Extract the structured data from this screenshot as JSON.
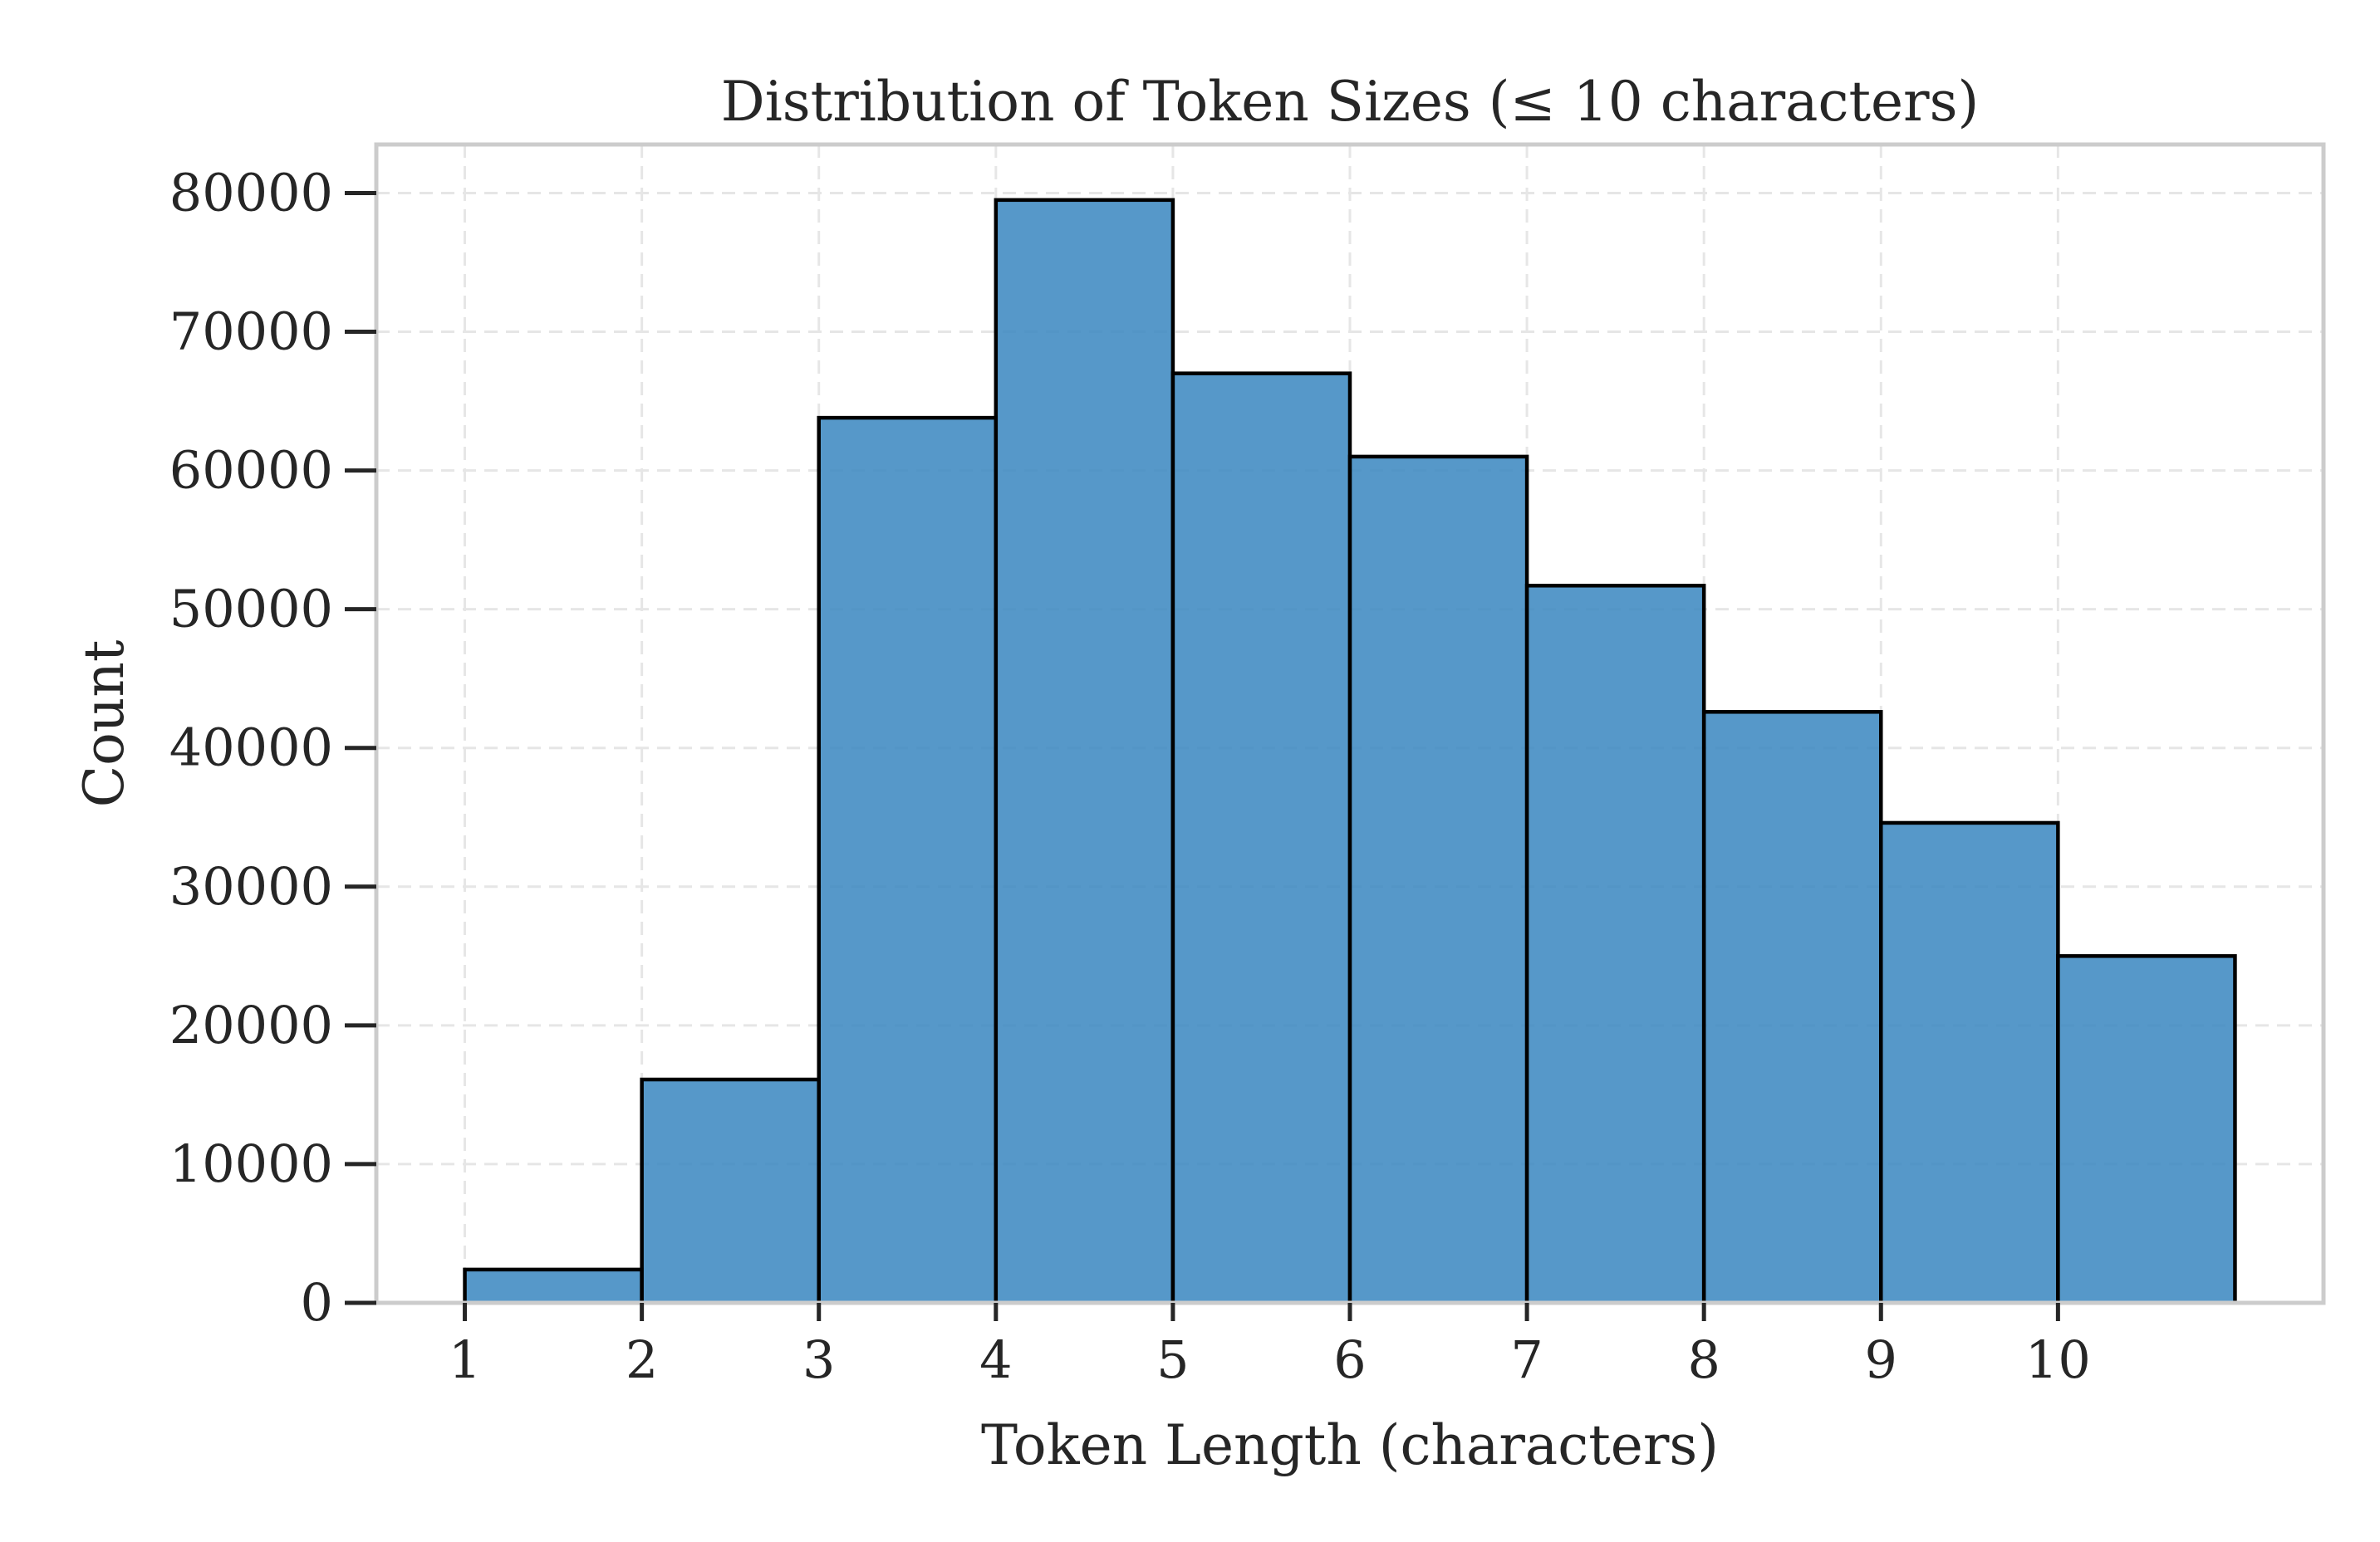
{
  "chart_data": {
    "type": "bar",
    "title": "Distribution of Token Sizes (≤ 10 characters)",
    "xlabel": "Token Length (characters)",
    "ylabel": "Count",
    "bin_edges": [
      1,
      2,
      3,
      4,
      5,
      6,
      7,
      8,
      9,
      10,
      11
    ],
    "values": [
      2400,
      16100,
      63800,
      79500,
      67000,
      61000,
      51700,
      42600,
      34600,
      25000
    ],
    "xlim": [
      0.5,
      11.5
    ],
    "ylim": [
      0,
      83500
    ],
    "xticks": [
      1,
      2,
      3,
      4,
      5,
      6,
      7,
      8,
      9,
      10
    ],
    "xtick_labels": [
      "1",
      "2",
      "3",
      "4",
      "5",
      "6",
      "7",
      "8",
      "9",
      "10"
    ],
    "yticks": [
      0,
      10000,
      20000,
      30000,
      40000,
      50000,
      60000,
      70000,
      80000
    ],
    "ytick_labels": [
      "0",
      "10000",
      "20000",
      "30000",
      "40000",
      "50000",
      "60000",
      "70000",
      "80000"
    ],
    "grid": true,
    "legend": "none",
    "colors": {
      "bar_fill": "#3a87c0",
      "bar_edge": "#000000",
      "grid": "#e6e6e6",
      "frame": "#cccccc",
      "text": "#262626"
    }
  }
}
